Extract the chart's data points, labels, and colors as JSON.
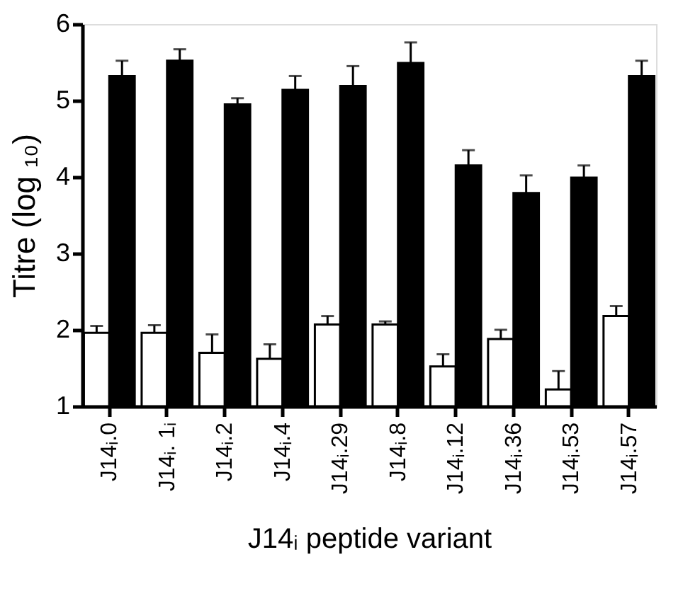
{
  "chart_data": {
    "type": "bar",
    "xlabel": "J14ᵢ peptide variant",
    "ylabel": "Titre (log ₁₀)",
    "categories": [
      "J14ᵢ.0",
      "J14ᵢ. 1ᵢ",
      "J14ᵢ.2",
      "J14ᵢ.4",
      "J14ᵢ.29",
      "J14ᵢ.8",
      "J14ᵢ.12",
      "J14ᵢ.36",
      "J14ᵢ.53",
      "J14ᵢ.57"
    ],
    "series": [
      {
        "color": "#ffffff",
        "values": [
          1.96,
          1.96,
          1.7,
          1.62,
          2.07,
          2.07,
          1.52,
          1.88,
          1.22,
          2.18
        ],
        "errors": [
          [
            1.96,
            2.05
          ],
          [
            1.96,
            2.06
          ],
          [
            1.7,
            1.94
          ],
          [
            1.62,
            1.81
          ],
          [
            2.07,
            2.18
          ],
          [
            2.07,
            2.11
          ],
          [
            1.52,
            1.68
          ],
          [
            1.88,
            2.0
          ],
          [
            1.22,
            1.46
          ],
          [
            2.18,
            2.31
          ]
        ]
      },
      {
        "color": "#000000",
        "values": [
          5.32,
          5.52,
          4.95,
          5.14,
          5.19,
          5.49,
          4.15,
          3.79,
          3.99,
          5.32
        ],
        "errors": [
          [
            5.32,
            5.52
          ],
          [
            5.52,
            5.67
          ],
          [
            4.95,
            5.03
          ],
          [
            5.14,
            5.32
          ],
          [
            5.19,
            5.45
          ],
          [
            5.49,
            5.76
          ],
          [
            4.15,
            4.35
          ],
          [
            3.79,
            4.02
          ],
          [
            3.99,
            4.15
          ],
          [
            5.32,
            5.52
          ]
        ]
      }
    ],
    "ylim": [
      1,
      6
    ],
    "yticks": [
      1,
      2,
      3,
      4,
      5,
      6
    ],
    "grid": false,
    "legend": false
  }
}
